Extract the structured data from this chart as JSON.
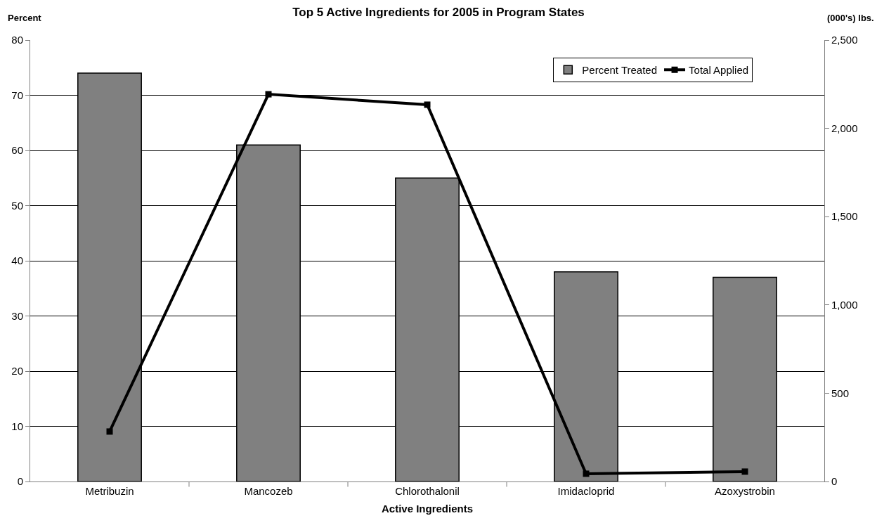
{
  "chart_data": {
    "type": "bar",
    "title": "Top 5 Active Ingredients for 2005 in Program States",
    "xlabel": "Active Ingredients",
    "ylabel": "Percent",
    "y2label": "(000's) lbs.",
    "categories": [
      "Metribuzin",
      "Mancozeb",
      "Chlorothalonil",
      "Imidacloprid",
      "Azoxystrobin"
    ],
    "series": [
      {
        "name": "Percent Treated",
        "color": "#808080",
        "values": [
          74,
          61,
          55,
          38,
          37
        ]
      },
      {
        "name": "Total Applied",
        "type": "line",
        "axis": "y2",
        "color": "#000000",
        "values": [
          283,
          2193,
          2134,
          44,
          56
        ]
      }
    ],
    "ylim": [
      0,
      80
    ],
    "yticks": [
      0,
      10,
      20,
      30,
      40,
      50,
      60,
      70,
      80
    ],
    "y2lim": [
      0,
      2500
    ],
    "y2ticks": [
      0,
      {
        "value": 500,
        "label": "500"
      },
      {
        "value": 1000,
        "label": "1,000"
      },
      {
        "value": 1500,
        "label": "1,500"
      },
      {
        "value": 2000,
        "label": "2,000"
      },
      {
        "value": 2500,
        "label": "2,500"
      }
    ],
    "grid": "y",
    "legend": "top right",
    "marker": "square",
    "line_style": "solid"
  }
}
